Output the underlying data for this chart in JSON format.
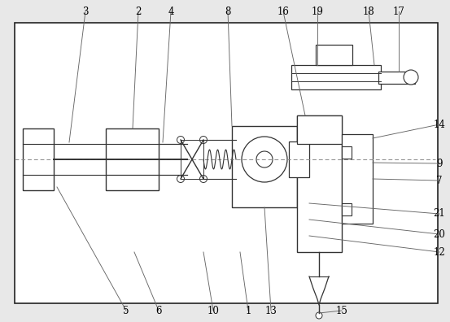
{
  "bg_color": "#e8e8e8",
  "border_color": "#222222",
  "line_color": "#333333",
  "label_color": "#000000",
  "fig_width": 5.53,
  "fig_height": 3.96,
  "dpi": 100
}
